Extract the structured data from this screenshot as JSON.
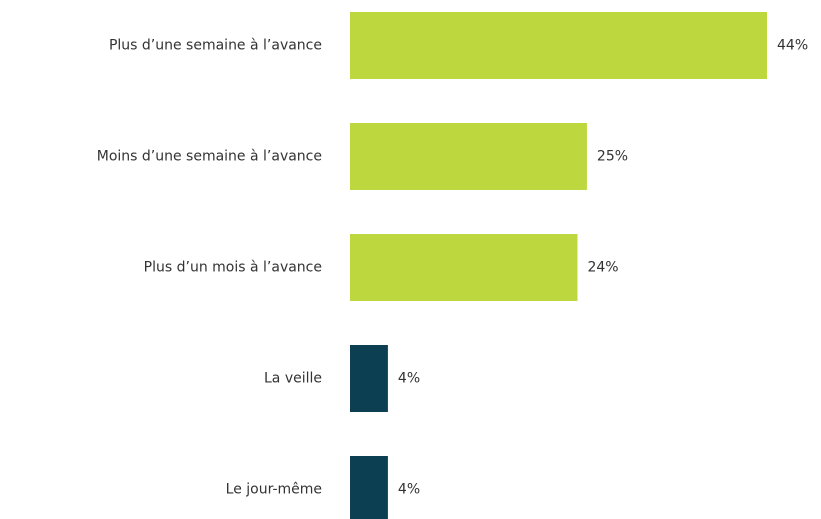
{
  "chart_data": {
    "type": "bar",
    "orientation": "horizontal",
    "categories": [
      "Plus d’une semaine à l’avance",
      "Moins d’une semaine à l’avance",
      "Plus d’un mois à l’avance",
      "La veille",
      "Le jour-même"
    ],
    "values": [
      44,
      25,
      24,
      4,
      4
    ],
    "value_labels": [
      "44%",
      "25%",
      "24%",
      "4%",
      "4%"
    ],
    "colors": [
      "#bdd73e",
      "#bdd73e",
      "#bdd73e",
      "#0d3f52",
      "#0d3f52"
    ]
  }
}
